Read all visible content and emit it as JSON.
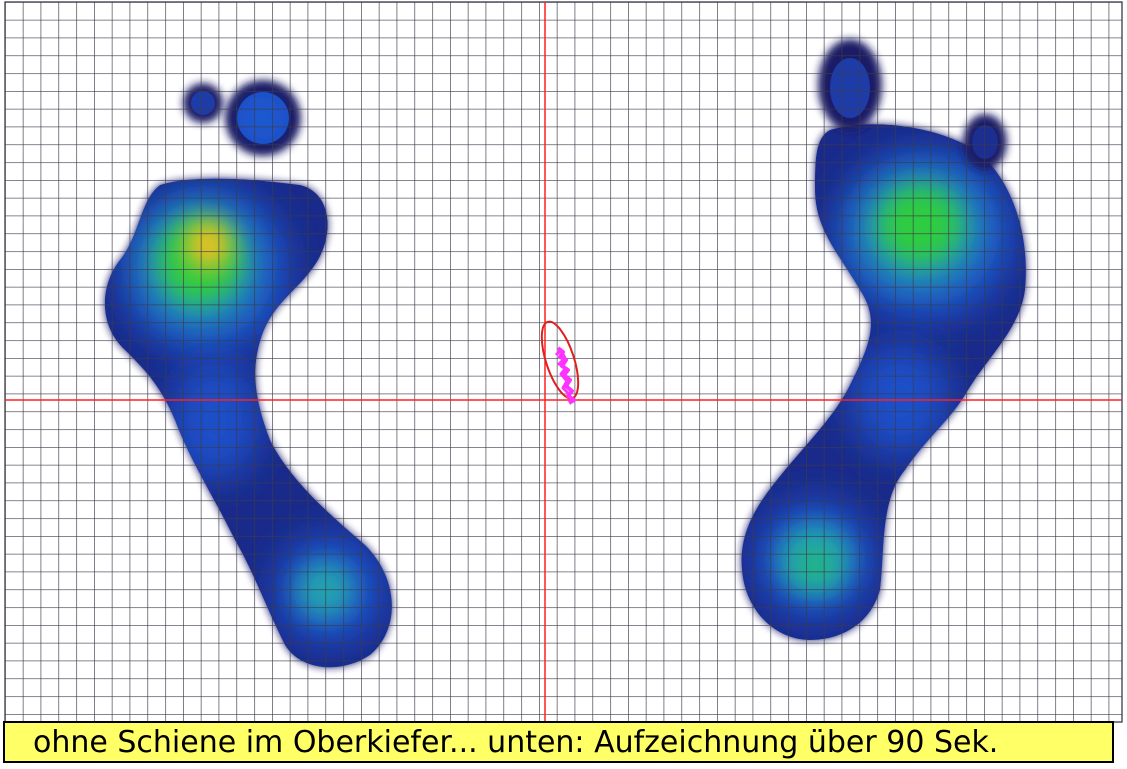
{
  "figure": {
    "caption": "ohne Schiene im Oberkiefer... unten: Aufzeichnung über 90 Sek.",
    "colors": {
      "background": "#ffffff",
      "grid": "#3a3a4a",
      "crosshair": "#ff2020",
      "sway_trace": "#ff33ff",
      "sway_ellipse": "#e02020",
      "caption_background": "#ffff66",
      "heat_low": "#1a1a66",
      "heat_mid_low": "#1e4fc8",
      "heat_mid": "#22a0b0",
      "heat_mid_high": "#2ecc40",
      "heat_high": "#f0c020"
    },
    "feet": [
      {
        "name": "left-foot",
        "peak_region": "forefoot",
        "peak_color": "heat_high"
      },
      {
        "name": "right-foot",
        "peak_region": "forefoot",
        "peak_color": "heat_mid_high"
      }
    ],
    "icons": [
      "crosshair-icon",
      "sway-ellipse-icon"
    ]
  }
}
